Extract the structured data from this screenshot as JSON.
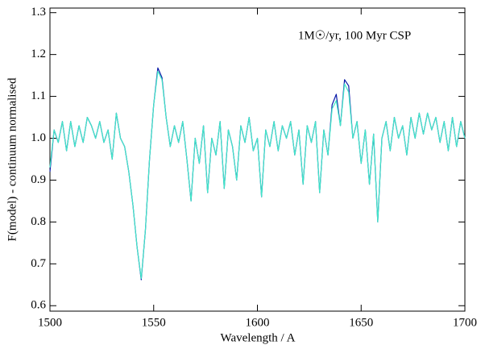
{
  "chart_data": {
    "type": "line",
    "annotation": "1M☉/yr, 100 Myr CSP",
    "x_label": "Wavelength / A",
    "y_label": "F(model) - continuum normalised",
    "x": [
      1500,
      1502,
      1504,
      1506,
      1508,
      1510,
      1512,
      1514,
      1516,
      1518,
      1520,
      1522,
      1524,
      1526,
      1528,
      1530,
      1532,
      1534,
      1536,
      1538,
      1540,
      1542,
      1544,
      1546,
      1548,
      1550,
      1552,
      1554,
      1556,
      1558,
      1560,
      1562,
      1564,
      1566,
      1568,
      1570,
      1572,
      1574,
      1576,
      1578,
      1580,
      1582,
      1584,
      1586,
      1588,
      1590,
      1592,
      1594,
      1596,
      1598,
      1600,
      1602,
      1604,
      1606,
      1608,
      1610,
      1612,
      1614,
      1616,
      1618,
      1620,
      1622,
      1624,
      1626,
      1628,
      1630,
      1632,
      1634,
      1636,
      1638,
      1640,
      1642,
      1644,
      1646,
      1648,
      1650,
      1652,
      1654,
      1656,
      1658,
      1660,
      1662,
      1664,
      1666,
      1668,
      1670,
      1672,
      1674,
      1676,
      1678,
      1680,
      1682,
      1684,
      1686,
      1688,
      1690,
      1692,
      1694,
      1696,
      1698,
      1700
    ],
    "series": [
      {
        "color": "#0a1aa8",
        "values": [
          0.92,
          1.02,
          0.99,
          1.04,
          0.97,
          1.04,
          0.98,
          1.03,
          0.99,
          1.05,
          1.03,
          1.0,
          1.04,
          0.99,
          1.02,
          0.95,
          1.06,
          1.0,
          0.98,
          0.92,
          0.84,
          0.74,
          0.662,
          0.78,
          0.95,
          1.08,
          1.168,
          1.145,
          1.05,
          0.98,
          1.03,
          0.99,
          1.04,
          0.95,
          0.85,
          1.0,
          0.94,
          1.03,
          0.87,
          1.0,
          0.96,
          1.04,
          0.88,
          1.02,
          0.98,
          0.9,
          1.03,
          0.99,
          1.05,
          0.97,
          1.0,
          0.86,
          1.02,
          0.98,
          1.04,
          0.97,
          1.03,
          1.0,
          1.04,
          0.96,
          1.02,
          0.89,
          1.03,
          0.99,
          1.04,
          0.87,
          1.02,
          0.96,
          1.08,
          1.105,
          1.03,
          1.14,
          1.125,
          1.0,
          1.04,
          0.94,
          1.02,
          0.89,
          1.01,
          0.8,
          1.0,
          1.04,
          0.97,
          1.05,
          1.0,
          1.03,
          0.96,
          1.05,
          1.0,
          1.06,
          1.01,
          1.06,
          1.02,
          1.05,
          0.99,
          1.04,
          0.97,
          1.05,
          0.98,
          1.04,
          1.0
        ]
      },
      {
        "color": "#40e8c8",
        "values": [
          0.93,
          1.02,
          0.99,
          1.04,
          0.97,
          1.04,
          0.98,
          1.03,
          0.99,
          1.05,
          1.03,
          1.0,
          1.04,
          0.99,
          1.02,
          0.95,
          1.06,
          1.0,
          0.98,
          0.92,
          0.84,
          0.74,
          0.665,
          0.78,
          0.95,
          1.08,
          1.16,
          1.14,
          1.05,
          0.98,
          1.03,
          0.99,
          1.04,
          0.95,
          0.85,
          1.0,
          0.94,
          1.03,
          0.87,
          1.0,
          0.96,
          1.04,
          0.88,
          1.02,
          0.98,
          0.9,
          1.03,
          0.99,
          1.05,
          0.97,
          1.0,
          0.86,
          1.02,
          0.98,
          1.04,
          0.97,
          1.03,
          1.0,
          1.04,
          0.96,
          1.02,
          0.89,
          1.03,
          0.99,
          1.04,
          0.87,
          1.02,
          0.96,
          1.07,
          1.09,
          1.03,
          1.13,
          1.11,
          1.0,
          1.04,
          0.94,
          1.02,
          0.89,
          1.01,
          0.8,
          1.0,
          1.04,
          0.97,
          1.05,
          1.0,
          1.03,
          0.96,
          1.05,
          1.0,
          1.06,
          1.01,
          1.06,
          1.02,
          1.05,
          0.99,
          1.04,
          0.97,
          1.05,
          0.98,
          1.04,
          1.0
        ]
      }
    ],
    "xlim": [
      1500,
      1700
    ],
    "xticks": [
      1500,
      1550,
      1600,
      1650,
      1700
    ],
    "ylim": [
      0.587,
      1.311
    ],
    "yticks": [
      0.6,
      0.7,
      0.8,
      0.9,
      {
        "value": 1,
        "label": "1.0"
      },
      1.1,
      1.2,
      1.3
    ]
  }
}
